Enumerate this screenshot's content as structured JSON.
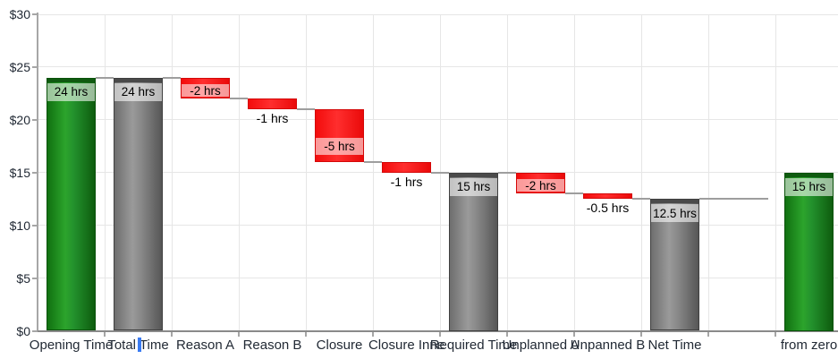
{
  "chart_data": {
    "type": "bar",
    "subtype": "waterfall",
    "title": "",
    "xlabel": "",
    "ylabel": "",
    "ylim": [
      0,
      30
    ],
    "grid": true,
    "y_ticks": [
      {
        "value": 0,
        "label": "$0"
      },
      {
        "value": 5,
        "label": "$5"
      },
      {
        "value": 10,
        "label": "$10"
      },
      {
        "value": 15,
        "label": "$15"
      },
      {
        "value": 20,
        "label": "$20"
      },
      {
        "value": 25,
        "label": "$25"
      },
      {
        "value": 30,
        "label": "$30"
      }
    ],
    "categories": [
      "Opening Time",
      "Total Time",
      "Reason A",
      "Reason B",
      "Closure",
      "Closure Inne",
      "Required Time",
      "Unplanned A",
      "Unpanned B",
      "Net Time",
      "",
      "from zero"
    ],
    "bars": [
      {
        "slot": 0,
        "category": "Opening Time",
        "start": 0,
        "end": 24,
        "value_label": "24 hrs",
        "color": "green",
        "label_placement": "inside-top"
      },
      {
        "slot": 1,
        "category": "Total Time",
        "start": 0,
        "end": 24,
        "value_label": "24 hrs",
        "color": "gray",
        "label_placement": "inside-top"
      },
      {
        "slot": 2,
        "category": "Reason A",
        "start": 24,
        "end": 22,
        "value_label": "-2 hrs",
        "color": "red",
        "label_placement": "inside-low"
      },
      {
        "slot": 3,
        "category": "Reason B",
        "start": 22,
        "end": 21,
        "value_label": "-1 hrs",
        "color": "red",
        "label_placement": "below"
      },
      {
        "slot": 4,
        "category": "Closure",
        "start": 21,
        "end": 16,
        "value_label": "-5 hrs",
        "color": "red",
        "label_placement": "inside-low"
      },
      {
        "slot": 5,
        "category": "Closure Inne",
        "start": 16,
        "end": 15,
        "value_label": "-1 hrs",
        "color": "red",
        "label_placement": "below"
      },
      {
        "slot": 6,
        "category": "Required Time",
        "start": 0,
        "end": 15,
        "value_label": "15 hrs",
        "color": "gray",
        "label_placement": "inside-top"
      },
      {
        "slot": 7,
        "category": "Unplanned A",
        "start": 15,
        "end": 13,
        "value_label": "-2 hrs",
        "color": "red",
        "label_placement": "inside-low"
      },
      {
        "slot": 8,
        "category": "Unpanned B",
        "start": 13,
        "end": 12.5,
        "value_label": "-0.5 hrs",
        "color": "red",
        "label_placement": "below"
      },
      {
        "slot": 9,
        "category": "Net Time",
        "start": 0,
        "end": 12.5,
        "value_label": "12.5 hrs",
        "color": "gray",
        "label_placement": "inside-top"
      },
      {
        "slot": 11,
        "category": "from zero",
        "start": 0,
        "end": 15,
        "value_label": "15 hrs",
        "color": "green",
        "label_placement": "inside-top"
      }
    ],
    "connectors": [
      {
        "level": 24,
        "from_slot": 0,
        "to_slot": 1
      },
      {
        "level": 24,
        "from_slot": 1,
        "to_slot": 2
      },
      {
        "level": 22,
        "from_slot": 2,
        "to_slot": 3
      },
      {
        "level": 21,
        "from_slot": 3,
        "to_slot": 4
      },
      {
        "level": 16,
        "from_slot": 4,
        "to_slot": 5
      },
      {
        "level": 15,
        "from_slot": 5,
        "to_slot": 6
      },
      {
        "level": 15,
        "from_slot": 6,
        "to_slot": 7
      },
      {
        "level": 13,
        "from_slot": 7,
        "to_slot": 8
      },
      {
        "level": 12.5,
        "from_slot": 8,
        "to_slot": 9
      },
      {
        "level": 12.5,
        "from_slot": 9,
        "to_slot": 10,
        "to_edge": "slot-right"
      }
    ],
    "colors": {
      "positive_first": "#1d8f1d",
      "total": "#7f7f7f",
      "negative": "#f71f1f",
      "connector": "#9e9e9e",
      "gridline": "#e6e6e6",
      "caret": "#3a7bf2"
    }
  }
}
